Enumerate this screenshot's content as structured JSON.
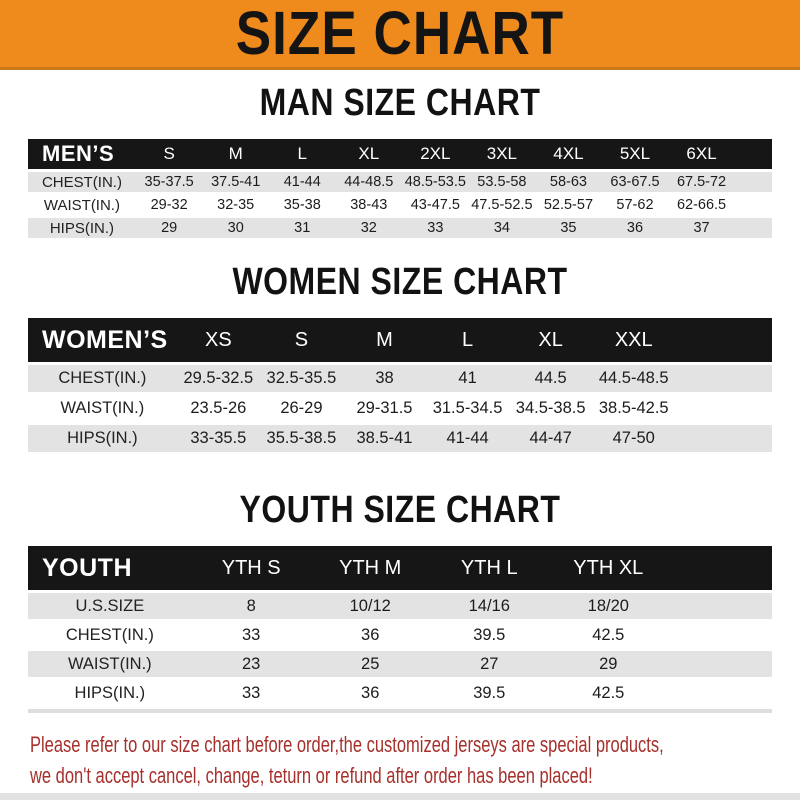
{
  "banner": {
    "title": "SIZE CHART"
  },
  "sections": [
    {
      "title": "MAN SIZE CHART",
      "header_label": "MEN’S",
      "columns": [
        "S",
        "M",
        "L",
        "XL",
        "2XL",
        "3XL",
        "4XL",
        "5XL",
        "6XL"
      ],
      "rows": [
        {
          "label": "CHEST(IN.)",
          "values": [
            "35-37.5",
            "37.5-41",
            "41-44",
            "44-48.5",
            "48.5-53.5",
            "53.5-58",
            "58-63",
            "63-67.5",
            "67.5-72"
          ]
        },
        {
          "label": "WAIST(IN.)",
          "values": [
            "29-32",
            "32-35",
            "35-38",
            "38-43",
            "43-47.5",
            "47.5-52.5",
            "52.5-57",
            "57-62",
            "62-66.5"
          ]
        },
        {
          "label": "HIPS(IN.)",
          "values": [
            "29",
            "30",
            "31",
            "32",
            "33",
            "34",
            "35",
            "36",
            "37"
          ]
        }
      ]
    },
    {
      "title": "WOMEN SIZE CHART",
      "header_label": "WOMEN’S",
      "columns": [
        "XS",
        "S",
        "M",
        "L",
        "XL",
        "XXL"
      ],
      "rows": [
        {
          "label": "CHEST(IN.)",
          "values": [
            "29.5-32.5",
            "32.5-35.5",
            "38",
            "41",
            "44.5",
            "44.5-48.5"
          ]
        },
        {
          "label": "WAIST(IN.)",
          "values": [
            "23.5-26",
            "26-29",
            "29-31.5",
            "31.5-34.5",
            "34.5-38.5",
            "38.5-42.5"
          ]
        },
        {
          "label": "HIPS(IN.)",
          "values": [
            "33-35.5",
            "35.5-38.5",
            "38.5-41",
            "41-44",
            "44-47",
            "47-50"
          ]
        }
      ]
    },
    {
      "title": "YOUTH SIZE CHART",
      "header_label": "YOUTH",
      "columns": [
        "YTH S",
        "YTH M",
        "YTH L",
        "YTH XL"
      ],
      "rows": [
        {
          "label": "U.S.SIZE",
          "values": [
            "8",
            "10/12",
            "14/16",
            "18/20"
          ]
        },
        {
          "label": "CHEST(IN.)",
          "values": [
            "33",
            "36",
            "39.5",
            "42.5"
          ]
        },
        {
          "label": "WAIST(IN.)",
          "values": [
            "23",
            "25",
            "27",
            "29"
          ]
        },
        {
          "label": "HIPS(IN.)",
          "values": [
            "33",
            "36",
            "39.5",
            "42.5"
          ]
        }
      ]
    }
  ],
  "footer": {
    "line1": "Please refer to our size chart before order,the customized jerseys are special products,",
    "line2": "we don't accept cancel, change, teturn or refund after order has been placed!"
  },
  "colors": {
    "banner_orange": "#EF8A1D",
    "banner_edge": "#C9791A",
    "bar_black": "#161616",
    "row_gray": "#E3E3E3",
    "footer_red": "#A6302B"
  }
}
